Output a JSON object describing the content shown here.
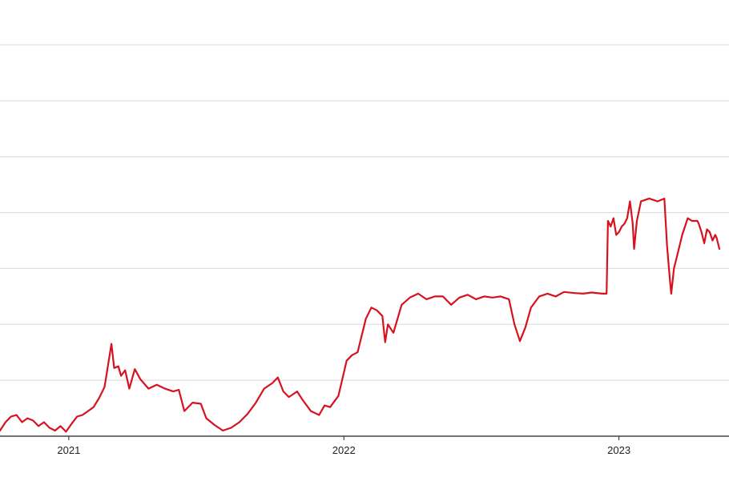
{
  "chart_data": {
    "type": "line",
    "title": "",
    "xlabel": "",
    "ylabel": "",
    "grid": true,
    "legend": "none",
    "x_tick_labels": [
      "2021",
      "2022",
      "2023"
    ],
    "x_ticks": [
      2021.0,
      2022.0,
      2023.0
    ],
    "xlim": [
      2020.75,
      2023.4
    ],
    "ylim": [
      0,
      70
    ],
    "gridlines_y": [
      0,
      10,
      20,
      30,
      40,
      50,
      60,
      70
    ],
    "series": [
      {
        "color": "#d7121f",
        "points": [
          [
            2020.75,
            1.0
          ],
          [
            2020.77,
            2.5
          ],
          [
            2020.79,
            3.5
          ],
          [
            2020.81,
            3.8
          ],
          [
            2020.83,
            2.5
          ],
          [
            2020.85,
            3.2
          ],
          [
            2020.87,
            2.8
          ],
          [
            2020.89,
            1.8
          ],
          [
            2020.91,
            2.5
          ],
          [
            2020.93,
            1.5
          ],
          [
            2020.95,
            1.0
          ],
          [
            2020.97,
            1.8
          ],
          [
            2020.99,
            0.8
          ],
          [
            2021.01,
            2.2
          ],
          [
            2021.03,
            3.5
          ],
          [
            2021.05,
            3.8
          ],
          [
            2021.07,
            4.5
          ],
          [
            2021.09,
            5.2
          ],
          [
            2021.11,
            6.8
          ],
          [
            2021.13,
            8.8
          ],
          [
            2021.155,
            16.5
          ],
          [
            2021.165,
            12.2
          ],
          [
            2021.18,
            12.5
          ],
          [
            2021.19,
            10.8
          ],
          [
            2021.205,
            11.8
          ],
          [
            2021.22,
            8.5
          ],
          [
            2021.24,
            12.0
          ],
          [
            2021.26,
            10.2
          ],
          [
            2021.29,
            8.5
          ],
          [
            2021.32,
            9.2
          ],
          [
            2021.35,
            8.5
          ],
          [
            2021.38,
            8.0
          ],
          [
            2021.4,
            8.3
          ],
          [
            2021.42,
            4.5
          ],
          [
            2021.45,
            6.0
          ],
          [
            2021.48,
            5.8
          ],
          [
            2021.5,
            3.2
          ],
          [
            2021.53,
            2.0
          ],
          [
            2021.56,
            1.0
          ],
          [
            2021.59,
            1.5
          ],
          [
            2021.62,
            2.5
          ],
          [
            2021.65,
            4.0
          ],
          [
            2021.68,
            6.0
          ],
          [
            2021.71,
            8.5
          ],
          [
            2021.74,
            9.5
          ],
          [
            2021.76,
            10.5
          ],
          [
            2021.78,
            8.0
          ],
          [
            2021.8,
            7.0
          ],
          [
            2021.83,
            8.0
          ],
          [
            2021.85,
            6.5
          ],
          [
            2021.88,
            4.5
          ],
          [
            2021.91,
            3.8
          ],
          [
            2021.93,
            5.5
          ],
          [
            2021.95,
            5.2
          ],
          [
            2021.98,
            7.2
          ],
          [
            2022.01,
            13.5
          ],
          [
            2022.03,
            14.5
          ],
          [
            2022.05,
            15.0
          ],
          [
            2022.08,
            21.0
          ],
          [
            2022.1,
            23.0
          ],
          [
            2022.12,
            22.5
          ],
          [
            2022.14,
            21.5
          ],
          [
            2022.15,
            16.8
          ],
          [
            2022.16,
            20.0
          ],
          [
            2022.18,
            18.5
          ],
          [
            2022.21,
            23.5
          ],
          [
            2022.24,
            24.8
          ],
          [
            2022.27,
            25.5
          ],
          [
            2022.3,
            24.5
          ],
          [
            2022.33,
            25.0
          ],
          [
            2022.36,
            25.0
          ],
          [
            2022.39,
            23.5
          ],
          [
            2022.42,
            24.8
          ],
          [
            2022.45,
            25.3
          ],
          [
            2022.48,
            24.5
          ],
          [
            2022.51,
            25.0
          ],
          [
            2022.54,
            24.8
          ],
          [
            2022.57,
            25.0
          ],
          [
            2022.6,
            24.5
          ],
          [
            2022.62,
            20.0
          ],
          [
            2022.64,
            17.0
          ],
          [
            2022.66,
            19.5
          ],
          [
            2022.68,
            23.0
          ],
          [
            2022.71,
            25.0
          ],
          [
            2022.74,
            25.5
          ],
          [
            2022.77,
            25.0
          ],
          [
            2022.8,
            25.8
          ],
          [
            2022.84,
            25.6
          ],
          [
            2022.87,
            25.5
          ],
          [
            2022.9,
            25.7
          ],
          [
            2022.94,
            25.5
          ],
          [
            2022.955,
            25.5
          ],
          [
            2022.96,
            38.5
          ],
          [
            2022.97,
            37.5
          ],
          [
            2022.98,
            39.0
          ],
          [
            2022.99,
            36.0
          ],
          [
            2023.0,
            36.5
          ],
          [
            2023.01,
            37.5
          ],
          [
            2023.02,
            38.0
          ],
          [
            2023.03,
            39.0
          ],
          [
            2023.04,
            42.0
          ],
          [
            2023.05,
            38.0
          ],
          [
            2023.055,
            33.5
          ],
          [
            2023.065,
            38.5
          ],
          [
            2023.08,
            42.0
          ],
          [
            2023.11,
            42.5
          ],
          [
            2023.14,
            42.0
          ],
          [
            2023.165,
            42.5
          ],
          [
            2023.175,
            34.0
          ],
          [
            2023.185,
            28.0
          ],
          [
            2023.19,
            25.5
          ],
          [
            2023.2,
            30.0
          ],
          [
            2023.215,
            33.0
          ],
          [
            2023.23,
            36.0
          ],
          [
            2023.25,
            39.0
          ],
          [
            2023.265,
            38.5
          ],
          [
            2023.285,
            38.5
          ],
          [
            2023.29,
            38.0
          ],
          [
            2023.3,
            36.5
          ],
          [
            2023.31,
            34.5
          ],
          [
            2023.32,
            37.0
          ],
          [
            2023.33,
            36.5
          ],
          [
            2023.34,
            35.0
          ],
          [
            2023.35,
            36.0
          ],
          [
            2023.355,
            35.5
          ],
          [
            2023.365,
            33.5
          ]
        ]
      }
    ]
  }
}
